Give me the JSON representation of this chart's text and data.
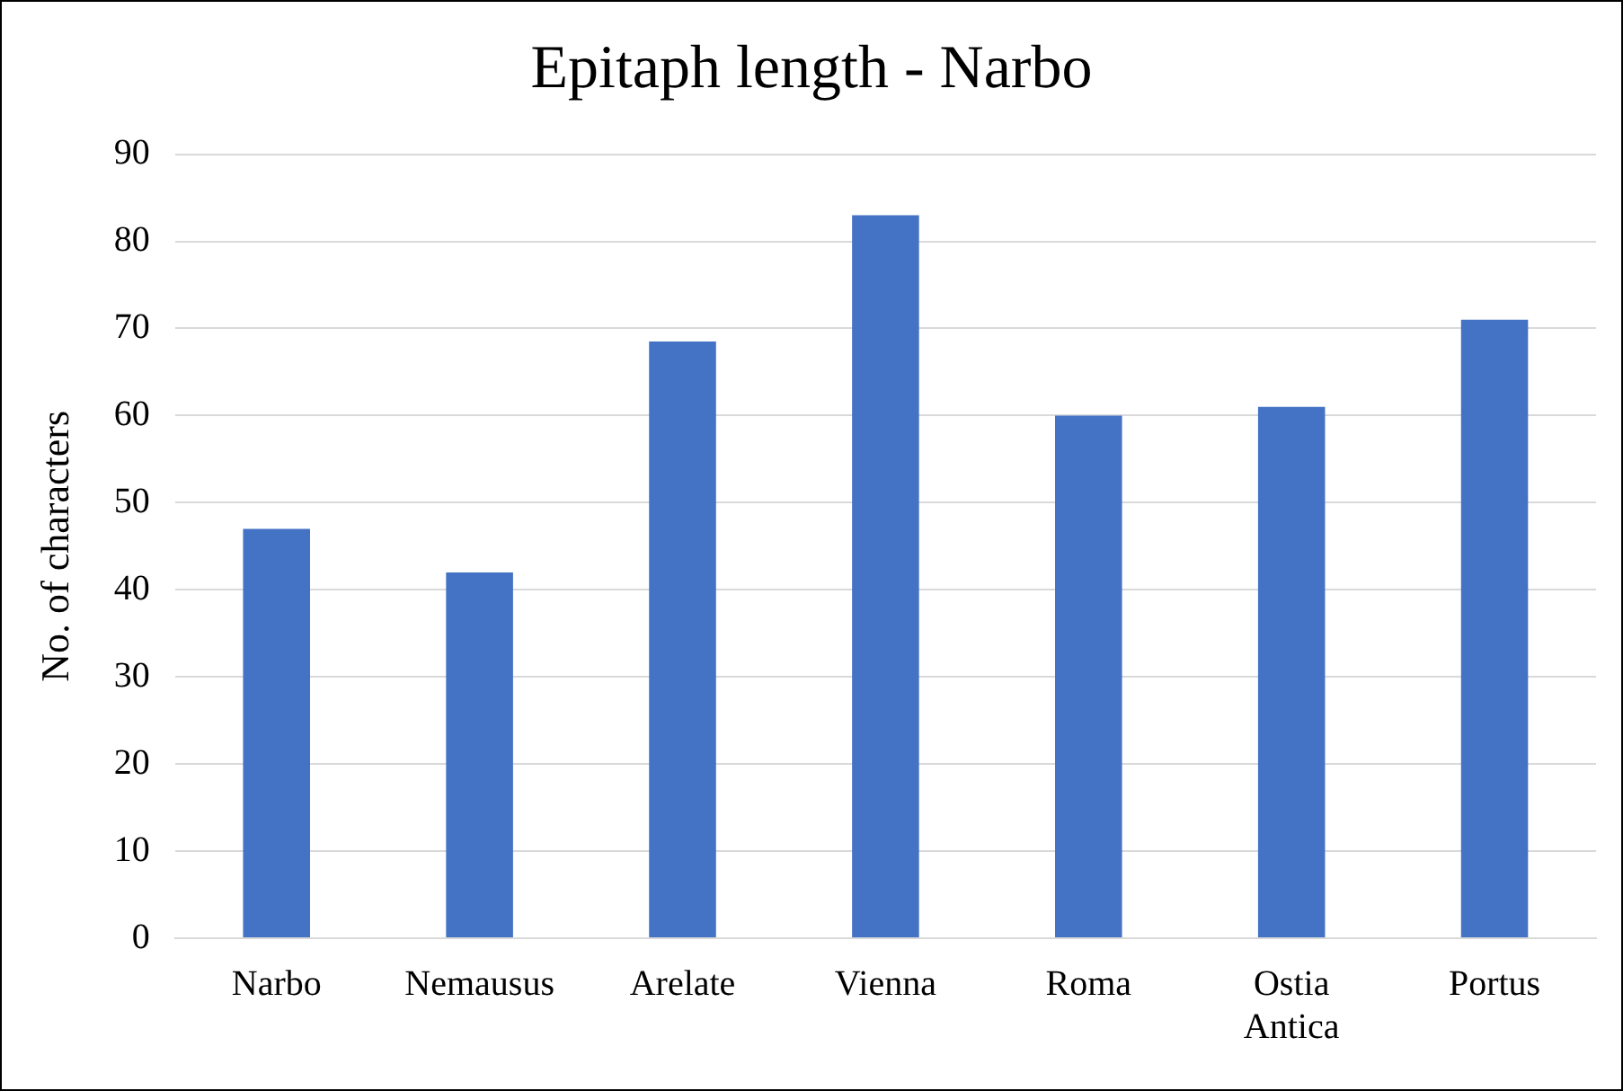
{
  "chart_data": {
    "type": "bar",
    "title": "Epitaph length - Narbo",
    "ylabel": "No. of characters",
    "categories": [
      "Narbo",
      "Nemausus",
      "Arelate",
      "Vienna",
      "Roma",
      "Ostia Antica",
      "Portus"
    ],
    "values": [
      47,
      42,
      68.5,
      83,
      60,
      61,
      71
    ],
    "color": "#4472c4",
    "ylim": [
      0,
      90
    ],
    "yticks": [
      0,
      10,
      20,
      30,
      40,
      50,
      60,
      70,
      80,
      90
    ],
    "grid": "y"
  }
}
